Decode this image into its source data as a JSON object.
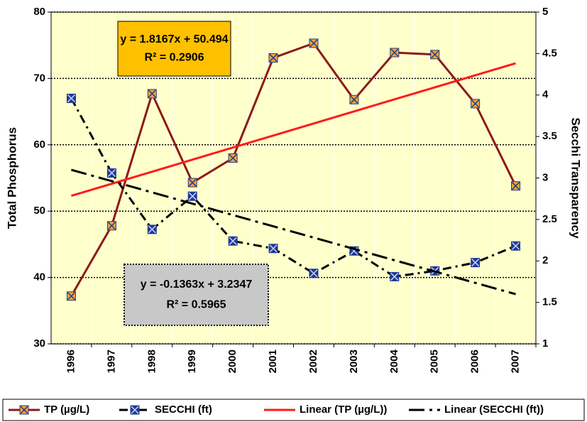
{
  "chart_data": {
    "type": "line",
    "categories": [
      "1996",
      "1997",
      "1998",
      "1999",
      "2000",
      "2001",
      "2002",
      "2003",
      "2004",
      "2005",
      "2006",
      "2007"
    ],
    "y_label": "Total Phosphorus",
    "y2_label": "Secchi Transparency",
    "ylim": [
      30,
      80
    ],
    "yticks": [
      30,
      40,
      50,
      60,
      70,
      80
    ],
    "y2lim": [
      1,
      5
    ],
    "y2ticks": [
      1,
      1.5,
      2,
      2.5,
      3,
      3.5,
      4,
      4.5,
      5
    ],
    "grid": true,
    "plot_background": "#ffffcc",
    "legend": "bottom",
    "series": [
      {
        "name": "TP (µg/L)",
        "color": "#8b1a1a",
        "line_style": "solid",
        "marker": "square-x",
        "marker_color": "#f7a530",
        "values": [
          37.2,
          47.8,
          67.7,
          54.3,
          58.0,
          73.1,
          75.3,
          66.8,
          73.9,
          73.6,
          66.2,
          53.8
        ]
      },
      {
        "name": "SECCHI (ft)",
        "color": "#000000",
        "line_style": "dashdot",
        "marker": "square-x",
        "marker_color": "#1f3a93",
        "axis": "y2",
        "values": [
          3.96,
          3.06,
          2.38,
          2.78,
          2.24,
          2.15,
          1.85,
          2.12,
          1.81,
          1.88,
          1.98,
          2.18
        ]
      },
      {
        "name": "Linear (TP (µg/L))",
        "color": "#ff1a1a",
        "line_style": "solid",
        "values": [
          52.31,
          54.13,
          55.94,
          57.76,
          59.58,
          61.39,
          63.21,
          65.03,
          66.85,
          68.66,
          70.48,
          72.29
        ]
      },
      {
        "name": "Linear (SECCHI (ft))",
        "color": "#000000",
        "line_style": "longdashdot",
        "axis": "y2",
        "values": [
          3.098,
          2.962,
          2.826,
          2.69,
          2.553,
          2.417,
          2.281,
          2.144,
          2.008,
          1.872,
          1.735,
          1.599
        ]
      }
    ],
    "annotations": [
      {
        "lines": [
          "y = 1.8167x + 50.494",
          "R² = 0.2906"
        ],
        "fill": "#ffc000",
        "border": "solid"
      },
      {
        "lines": [
          "y = -0.1363x + 3.2347",
          "R² = 0.5965"
        ],
        "fill": "#c8c8c8",
        "border": "dotted"
      }
    ]
  }
}
